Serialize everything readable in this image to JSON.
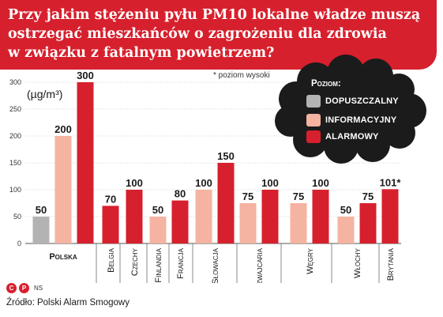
{
  "title_lines": [
    "Przy jakim stężeniu pyłu PM10 lokalne władze muszą",
    "ostrzegać mieszkańców o zagrożeniu dla zdrowia",
    "w związku z fatalnym powietrzem?"
  ],
  "note": "* poziom wysoki",
  "unit_label": "(µg/m³)",
  "legend": {
    "title": "Poziom:",
    "items": [
      {
        "label": "DOPUSZCZALNY",
        "color": "#b3b3b3"
      },
      {
        "label": "INFORMACYJNY",
        "color": "#f5b3a1"
      },
      {
        "label": "ALARMOWY",
        "color": "#d7202d"
      }
    ]
  },
  "source": "Źródło: Polski Alarm Smogowy",
  "logo": {
    "c_mark": "C",
    "p_mark": "P",
    "ns": "NS"
  },
  "chart_data": {
    "type": "bar",
    "ylabel": "(µg/m³)",
    "ylim": [
      0,
      300
    ],
    "yticks": [
      0,
      50,
      100,
      150,
      200,
      250,
      300
    ],
    "grid": true,
    "categories": [
      "Polska",
      "Belgia",
      "Czechy",
      "Finlandia",
      "Francja",
      "Słowacja",
      "Szwajcaria",
      "Węgry",
      "Włochy",
      "W. Brytania"
    ],
    "series": [
      {
        "name": "Dopuszczalny",
        "color": "#b3b3b3",
        "values": [
          50,
          null,
          null,
          null,
          null,
          null,
          null,
          null,
          null,
          null
        ]
      },
      {
        "name": "Informacyjny",
        "color": "#f5b3a1",
        "values": [
          200,
          null,
          null,
          50,
          null,
          100,
          75,
          75,
          50,
          null
        ]
      },
      {
        "name": "Alarmowy",
        "color": "#d7202d",
        "values": [
          300,
          70,
          100,
          null,
          80,
          150,
          100,
          100,
          75,
          101
        ]
      }
    ],
    "value_labels": [
      "50",
      "200",
      "300",
      "70",
      "100",
      "50",
      "80",
      "100",
      "150",
      "75",
      "100",
      "75",
      "100",
      "50",
      "75",
      "101*"
    ]
  }
}
